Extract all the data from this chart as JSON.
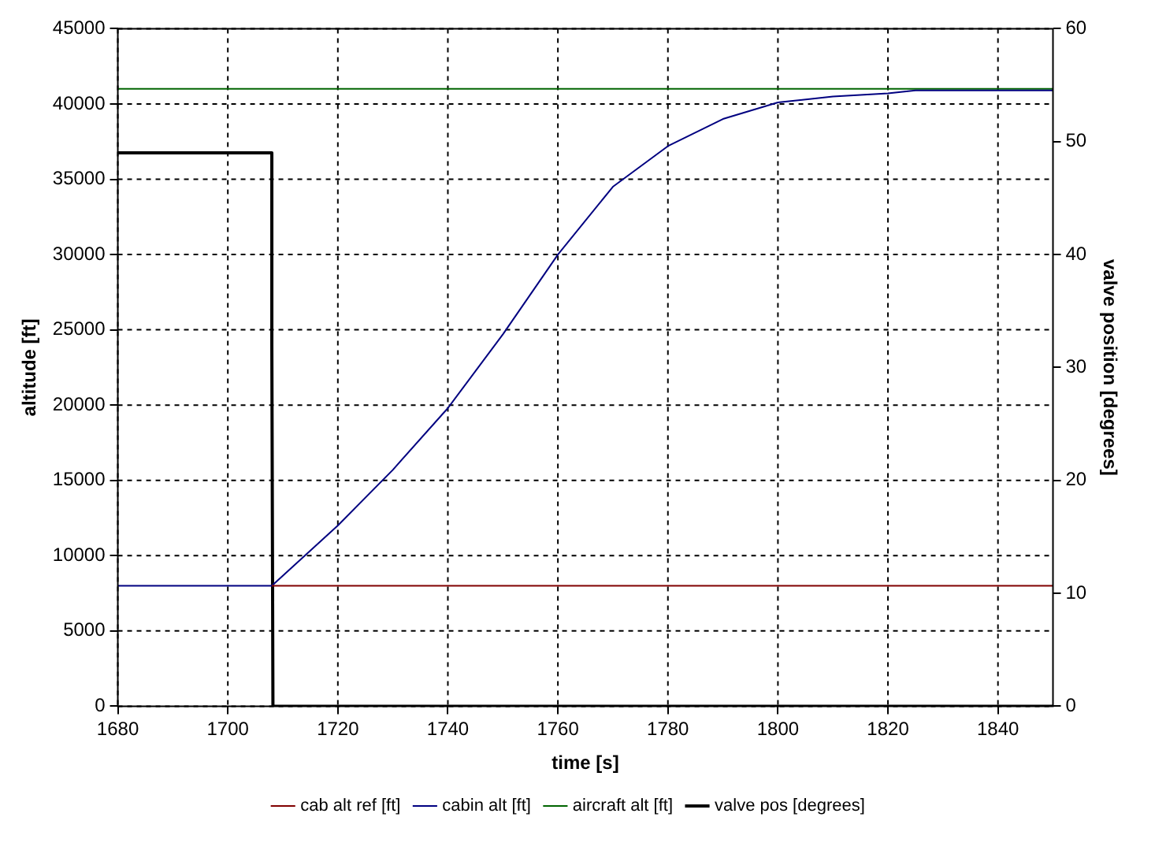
{
  "chart_data": {
    "type": "line",
    "xlabel": "time [s]",
    "ylabel": "altitude [ft]",
    "y2label": "valve position [degrees]",
    "xlim": [
      1680,
      1850
    ],
    "xticks": [
      1680,
      1700,
      1720,
      1740,
      1760,
      1780,
      1800,
      1820,
      1840
    ],
    "ylim": [
      0,
      45000
    ],
    "yticks": [
      0,
      5000,
      10000,
      15000,
      20000,
      25000,
      30000,
      35000,
      40000,
      45000
    ],
    "y2lim": [
      0,
      60
    ],
    "y2ticks": [
      0,
      10,
      20,
      30,
      40,
      50,
      60
    ],
    "grid": true,
    "legend": "bottom",
    "marker": "none",
    "line_style": "solid",
    "series": [
      {
        "name": "cab alt ref [ft]",
        "color": "#800000",
        "x": [
          1708,
          1850
        ],
        "values": [
          8000,
          8000
        ]
      },
      {
        "name": "cabin alt [ft]",
        "color": "#000080",
        "x": [
          1680,
          1708,
          1720,
          1730,
          1740,
          1750,
          1760,
          1770,
          1780,
          1790,
          1800,
          1810,
          1820,
          1825,
          1850
        ],
        "values": [
          8000,
          8000,
          12000,
          15700,
          19800,
          24700,
          30000,
          34500,
          37200,
          39000,
          40100,
          40500,
          40700,
          40900,
          40900
        ]
      },
      {
        "name": "aircraft alt [ft]",
        "color": "#006400",
        "x": [
          1680,
          1850
        ],
        "values": [
          41000,
          41000
        ]
      },
      {
        "name": "valve pos [degrees]",
        "color": "#000000",
        "axis": "y2",
        "x": [
          1680,
          1708,
          1708,
          1708.2,
          1850
        ],
        "values": [
          49,
          49,
          32,
          0,
          0
        ]
      }
    ]
  }
}
